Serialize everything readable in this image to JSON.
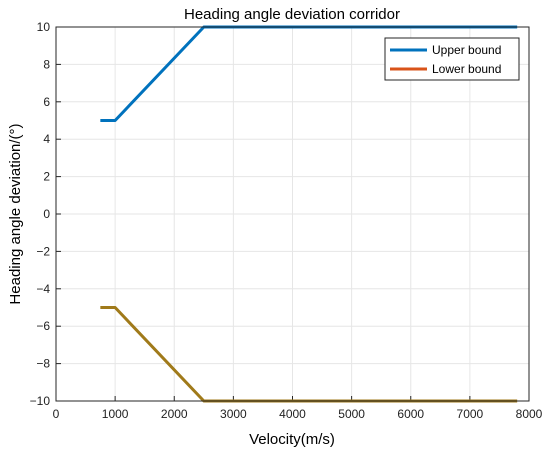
{
  "chart_data": {
    "type": "line",
    "title": "Heading angle deviation corridor",
    "xlabel": "Velocity(m/s)",
    "ylabel": "Heading angle deviation/(°)",
    "xlim": [
      0,
      8000
    ],
    "ylim": [
      -10,
      10
    ],
    "xticks": [
      0,
      1000,
      2000,
      3000,
      4000,
      5000,
      6000,
      7000,
      8000
    ],
    "yticks": [
      -10,
      -8,
      -6,
      -4,
      -2,
      0,
      2,
      4,
      6,
      8,
      10
    ],
    "xtick_labels": [
      "0",
      "1000",
      "2000",
      "3000",
      "4000",
      "5000",
      "6000",
      "7000",
      "8000"
    ],
    "ytick_labels": [
      "−10",
      "−8",
      "−6",
      "−4",
      "−2",
      "0",
      "2",
      "4",
      "6",
      "8",
      "10"
    ],
    "grid": true,
    "legend_position": "top-right",
    "series": [
      {
        "name": "Upper bound",
        "color": "#0072BD",
        "x": [
          750,
          1000,
          2500,
          7800
        ],
        "y": [
          5,
          5,
          10,
          10
        ]
      },
      {
        "name": "Lower bound",
        "color": "#D95319",
        "drawn_color": "#A07A1A",
        "x": [
          750,
          1000,
          2500,
          7800
        ],
        "y": [
          -5,
          -5,
          -10,
          -10
        ]
      }
    ]
  }
}
